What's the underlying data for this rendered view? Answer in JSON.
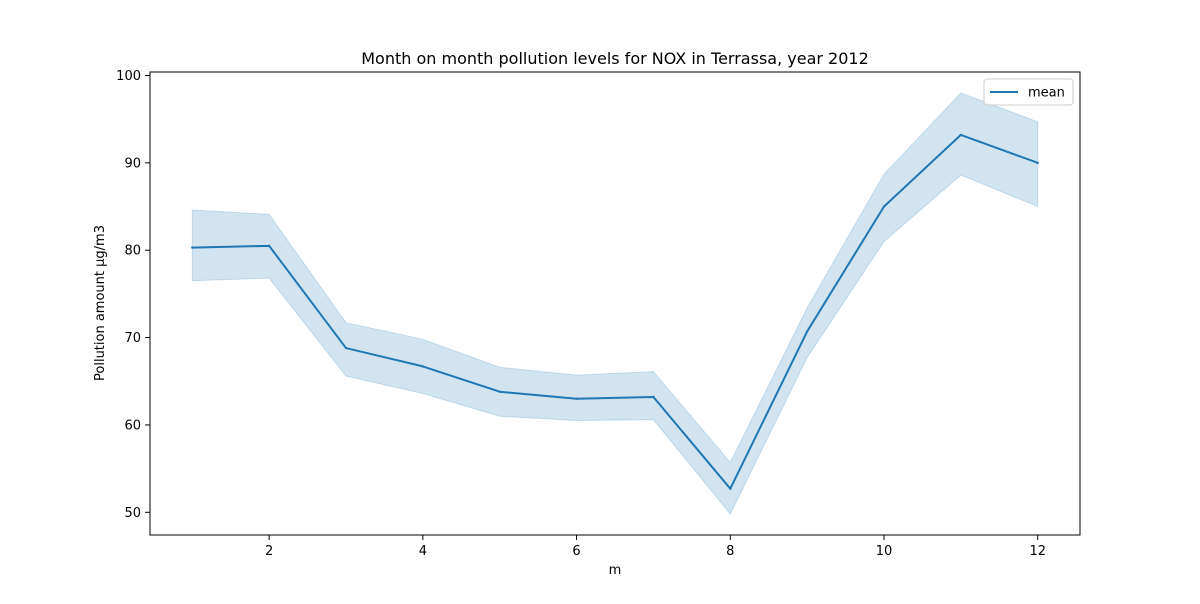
{
  "chart_data": {
    "type": "line",
    "title": "Month on month pollution levels for NOX in Terrassa, year 2012",
    "xlabel": "m",
    "ylabel": "Pollution amount µg/m3",
    "xlim": [
      0.45,
      12.55
    ],
    "ylim": [
      47.4,
      100.4
    ],
    "xticks": [
      2,
      4,
      6,
      8,
      10,
      12
    ],
    "yticks": [
      50,
      60,
      70,
      80,
      90,
      100
    ],
    "grid": false,
    "legend_position": "top-right",
    "x": [
      1,
      2,
      3,
      4,
      5,
      6,
      7,
      8,
      9,
      10,
      11,
      12
    ],
    "series": [
      {
        "name": "mean",
        "color": "#1f77b4",
        "values": [
          80.3,
          80.5,
          68.8,
          66.7,
          63.8,
          63.0,
          63.2,
          52.7,
          70.7,
          85.0,
          93.2,
          90.0
        ],
        "band_lower": [
          76.5,
          76.8,
          65.6,
          63.6,
          61.0,
          60.5,
          60.6,
          49.8,
          67.7,
          81.0,
          88.6,
          85.0
        ],
        "band_upper": [
          84.6,
          84.1,
          71.7,
          69.8,
          66.6,
          65.7,
          66.1,
          55.7,
          73.4,
          88.7,
          98.0,
          94.7
        ],
        "band_color": "#1f77b4"
      }
    ]
  }
}
